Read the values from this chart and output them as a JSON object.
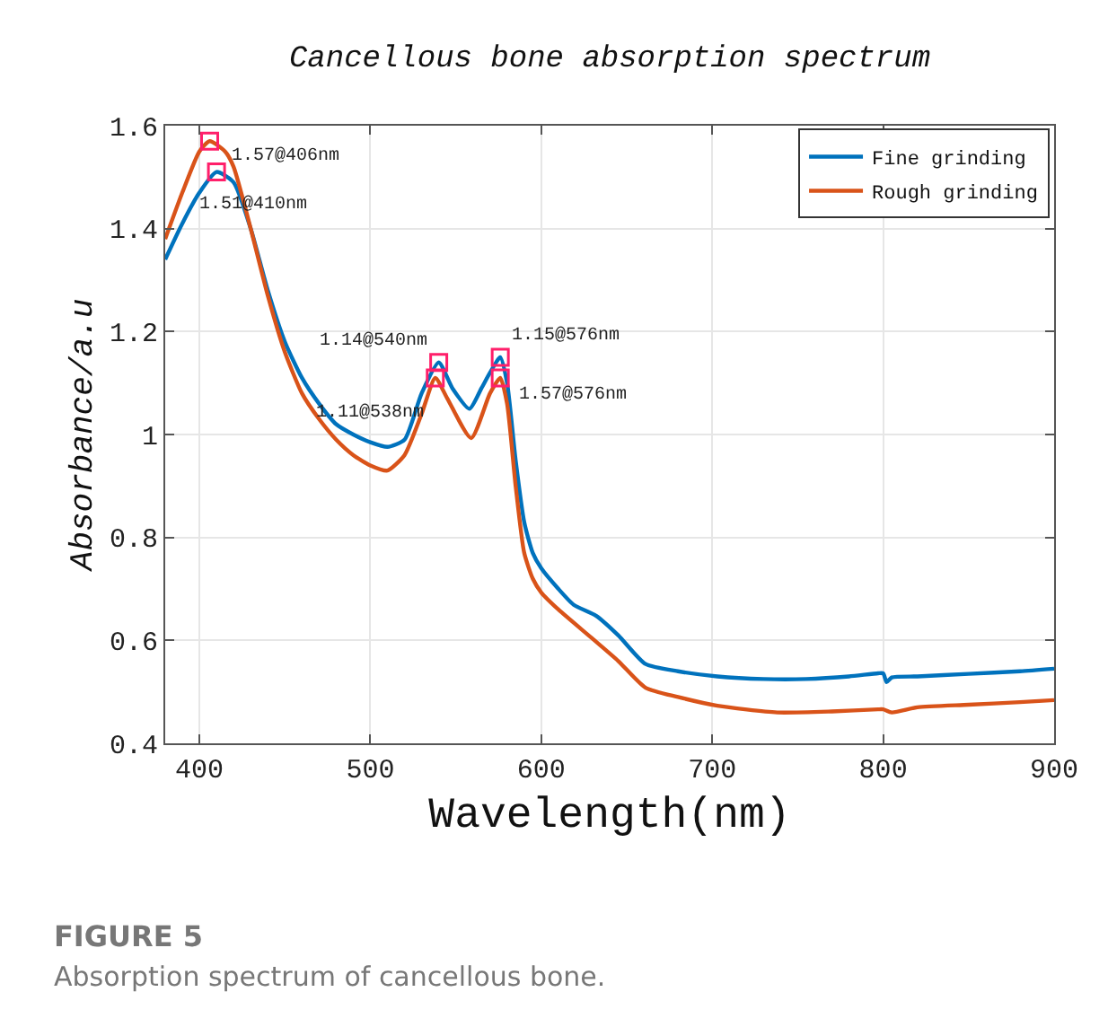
{
  "chart_data": {
    "type": "line",
    "title": "Cancellous bone absorption spectrum",
    "xlabel": "Wavelength(nm)",
    "ylabel": "Absorbance/a.u",
    "xlim": [
      380,
      900
    ],
    "xticks": [
      400,
      500,
      600,
      700,
      800,
      900
    ],
    "ylim": [
      0.4,
      1.6
    ],
    "yticks": [
      0.4,
      0.6,
      0.8,
      1,
      1.2,
      1.4,
      1.6
    ],
    "grid": true,
    "legend": "top right",
    "series": [
      {
        "name": "Fine grinding",
        "color": "#0072bd",
        "x": [
          380,
          390,
          400,
          410,
          420,
          430,
          440,
          450,
          460,
          470,
          480,
          490,
          500,
          510,
          520,
          530,
          540,
          548,
          558,
          565,
          570,
          576,
          580,
          585,
          590,
          595,
          600,
          610,
          619,
          632,
          645,
          661,
          680,
          703,
          730,
          755,
          780,
          797,
          800,
          802,
          805,
          820,
          850,
          880,
          900
        ],
        "values": [
          1.34,
          1.41,
          1.47,
          1.51,
          1.49,
          1.4,
          1.28,
          1.18,
          1.11,
          1.06,
          1.02,
          1.0,
          0.985,
          0.976,
          0.99,
          1.08,
          1.14,
          1.09,
          1.05,
          1.09,
          1.12,
          1.15,
          1.1,
          0.95,
          0.83,
          0.77,
          0.74,
          0.7,
          0.669,
          0.648,
          0.61,
          0.554,
          0.54,
          0.53,
          0.525,
          0.525,
          0.53,
          0.536,
          0.536,
          0.519,
          0.528,
          0.53,
          0.535,
          0.54,
          0.545
        ]
      },
      {
        "name": "Rough grinding",
        "color": "#d95319",
        "x": [
          380,
          390,
          400,
          406,
          415,
          420,
          430,
          440,
          450,
          460,
          470,
          480,
          490,
          500,
          510,
          520,
          530,
          538,
          545,
          559,
          570,
          576,
          580,
          585,
          590,
          595,
          600,
          610,
          629,
          645,
          661,
          680,
          703,
          738,
          770,
          797,
          800,
          805,
          820,
          850,
          880,
          900
        ],
        "values": [
          1.38,
          1.47,
          1.55,
          1.57,
          1.55,
          1.52,
          1.4,
          1.27,
          1.16,
          1.08,
          1.03,
          0.99,
          0.96,
          0.94,
          0.93,
          0.96,
          1.04,
          1.11,
          1.07,
          0.993,
          1.08,
          1.11,
          1.06,
          0.9,
          0.77,
          0.72,
          0.693,
          0.66,
          0.606,
          0.56,
          0.508,
          0.49,
          0.473,
          0.46,
          0.462,
          0.466,
          0.466,
          0.46,
          0.47,
          0.475,
          0.48,
          0.484
        ]
      }
    ],
    "annotations": [
      {
        "text": "1.57@406nm",
        "x": 406,
        "y": 1.57
      },
      {
        "text": "1.51@410nm",
        "x": 410,
        "y": 1.51
      },
      {
        "text": "1.14@540nm",
        "x": 540,
        "y": 1.14
      },
      {
        "text": "1.11@538nm",
        "x": 538,
        "y": 1.11
      },
      {
        "text": "1.15@576nm",
        "x": 576,
        "y": 1.15
      },
      {
        "text": "1.57@576nm",
        "x": 576,
        "y": 1.11
      },
      "FIGURE 5",
      "Absorption spectrum of cancellous bone."
    ]
  }
}
